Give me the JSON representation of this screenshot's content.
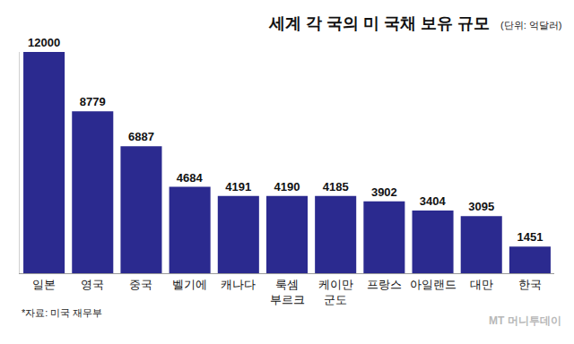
{
  "chart_data": {
    "type": "bar",
    "title": "세계 각 국의 미 국채 보유 규모",
    "subtitle": "(단위: 억달러)",
    "categories": [
      "일본",
      "영국",
      "중국",
      "벨기에",
      "캐나다",
      "룩셈부르크",
      "케이만 군도",
      "프랑스",
      "아일랜드",
      "대만",
      "한국"
    ],
    "values": [
      12000,
      8779,
      6887,
      4684,
      4191,
      4190,
      4185,
      3902,
      3404,
      3095,
      1451
    ],
    "color": "#2b2a8f",
    "ylim": [
      0,
      12000
    ],
    "yticks": [],
    "grid": false,
    "data_labels": true,
    "tick_labels": "x",
    "annotations": [
      "*자료: 미국 재무부",
      "MT 머니투데이"
    ]
  }
}
